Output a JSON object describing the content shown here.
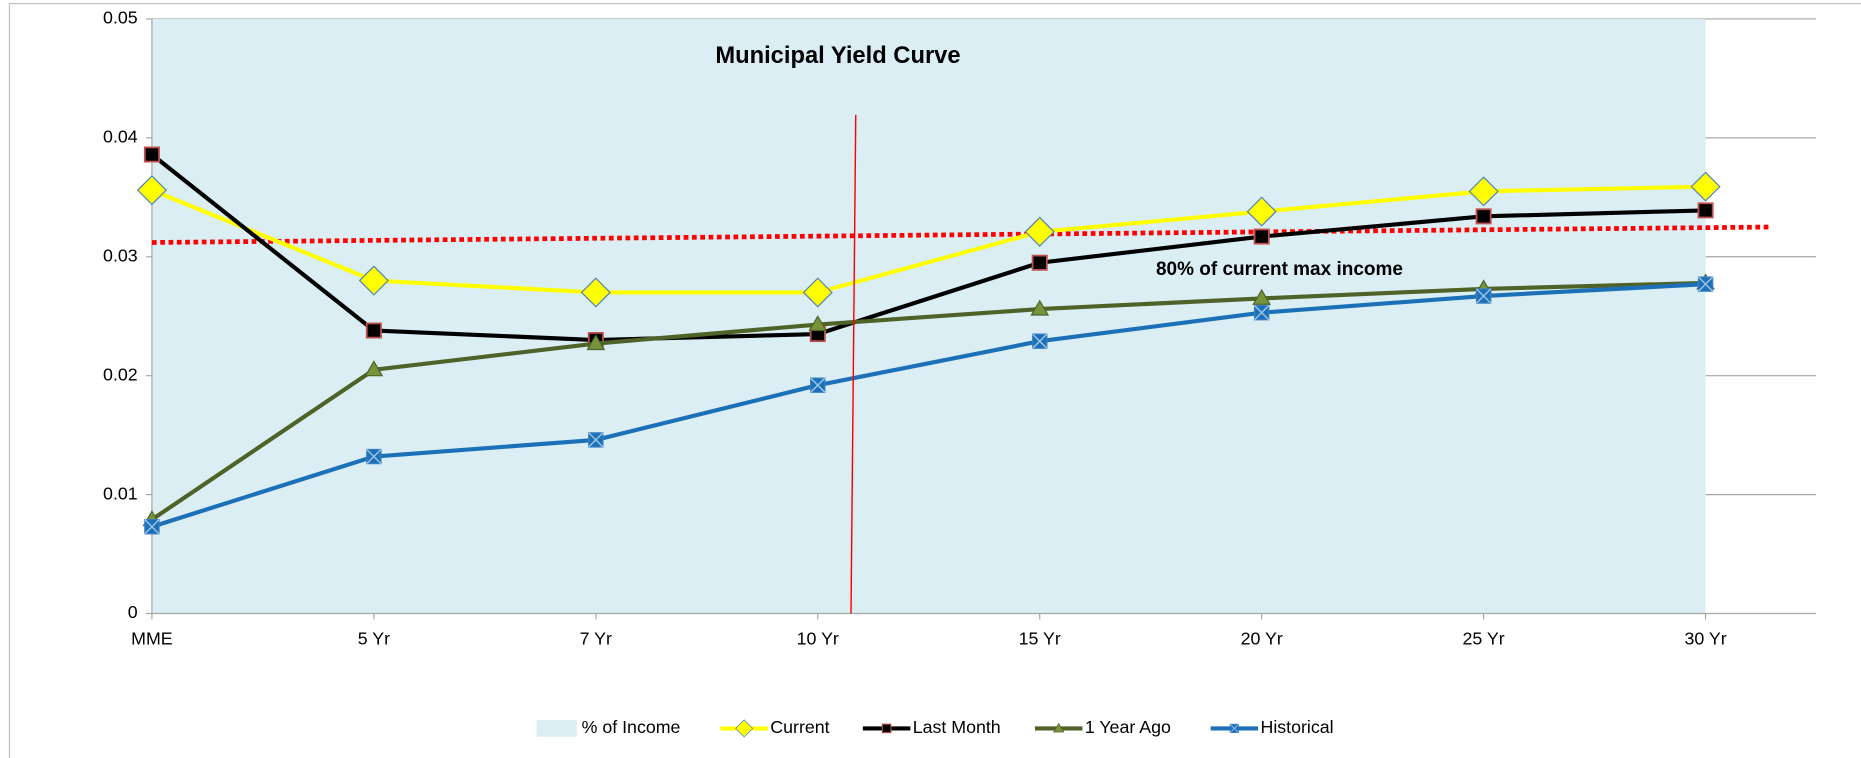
{
  "chart_data": {
    "type": "line",
    "title": "Municipal Yield Curve",
    "annotation": "80% of current max income",
    "categories": [
      "MME",
      "5 Yr",
      "7 Yr",
      "10 Yr",
      "15 Yr",
      "20 Yr",
      "25 Yr",
      "30 Yr"
    ],
    "series": [
      {
        "name": "% of Income",
        "type": "area",
        "color": "#daeef3",
        "values": [
          0.05,
          0.05,
          0.05,
          0.05,
          0.05,
          0.05,
          0.05,
          0.05
        ]
      },
      {
        "name": "Current",
        "color": "#ffff00",
        "marker": "diamond",
        "values": [
          0.0356,
          0.028,
          0.027,
          0.027,
          0.0321,
          0.0338,
          0.0355,
          0.0359
        ]
      },
      {
        "name": "Last Month",
        "color": "#000000",
        "marker": "square",
        "values": [
          0.0386,
          0.0238,
          0.023,
          0.0235,
          0.0295,
          0.0317,
          0.0334,
          0.0339
        ]
      },
      {
        "name": "1 Year Ago",
        "color": "#4f6228",
        "marker": "triangle",
        "values": [
          0.0079,
          0.0205,
          0.0227,
          0.0243,
          0.0256,
          0.0265,
          0.0273,
          0.0278
        ]
      },
      {
        "name": "Historical",
        "color": "#1c70b8",
        "marker": "xsquare",
        "values": [
          0.0073,
          0.0132,
          0.0146,
          0.0192,
          0.0229,
          0.0253,
          0.0267,
          0.0277
        ]
      }
    ],
    "reference_line": {
      "color": "#ff0000",
      "values": [
        0.0312,
        0.0325
      ]
    },
    "ylim": [
      0,
      0.05
    ],
    "yticks": [
      0,
      0.01,
      0.02,
      0.03,
      0.04,
      0.05
    ],
    "grid": true,
    "legend": "bottom"
  }
}
